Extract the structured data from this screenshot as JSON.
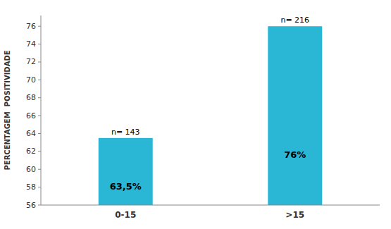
{
  "chart_data": {
    "type": "bar",
    "categories": [
      "0-15",
      ">15"
    ],
    "values": [
      63.5,
      76.0
    ],
    "value_labels": [
      "63,5%",
      "76%"
    ],
    "data_labels": true,
    "annotations": [
      "n= 143",
      "n= 216"
    ],
    "color": "#2ab7d6",
    "ylabel": "PERCENTAGEM  POSITIVIDADE",
    "ylim": [
      56,
      77.2
    ],
    "yticks": [
      56,
      58,
      60,
      62,
      64,
      66,
      68,
      70,
      72,
      74,
      76
    ],
    "grid": false
  }
}
